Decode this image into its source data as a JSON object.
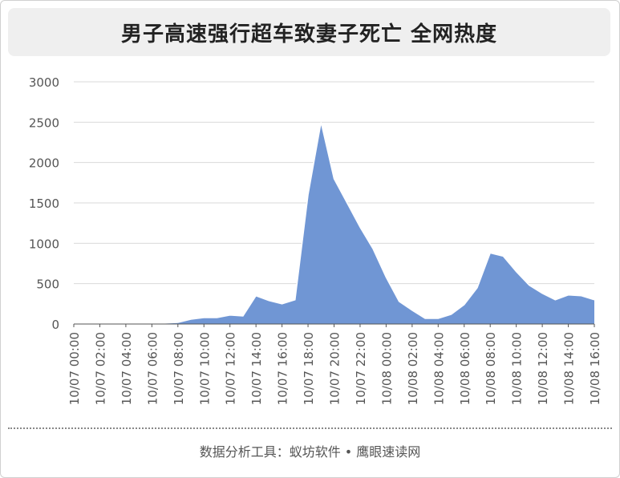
{
  "title": "男子高速强行超车致妻子死亡 全网热度",
  "footer": "数据分析工具：蚁坊软件 • 鹰眼速读网",
  "colors": {
    "area": "#7096d4",
    "area_line": "#ffffff",
    "grid": "#d9d9d9",
    "axis": "#555555",
    "tick_text": "#555555",
    "title_bg": "#efefef"
  },
  "chart_data": {
    "type": "area",
    "title": "男子高速强行超车致妻子死亡 全网热度",
    "xlabel": "",
    "ylabel": "",
    "ylim": [
      0,
      3000
    ],
    "yticks": [
      0,
      500,
      1000,
      1500,
      2000,
      2500,
      3000
    ],
    "grid": true,
    "legend": "none",
    "x": [
      "10/07 00:00",
      "10/07 01:00",
      "10/07 02:00",
      "10/07 03:00",
      "10/07 04:00",
      "10/07 05:00",
      "10/07 06:00",
      "10/07 07:00",
      "10/07 08:00",
      "10/07 09:00",
      "10/07 10:00",
      "10/07 11:00",
      "10/07 12:00",
      "10/07 13:00",
      "10/07 14:00",
      "10/07 15:00",
      "10/07 16:00",
      "10/07 17:00",
      "10/07 18:00",
      "10/07 19:00",
      "10/07 20:00",
      "10/07 21:00",
      "10/07 22:00",
      "10/07 23:00",
      "10/08 00:00",
      "10/08 01:00",
      "10/08 02:00",
      "10/08 03:00",
      "10/08 04:00",
      "10/08 05:00",
      "10/08 06:00",
      "10/08 07:00",
      "10/08 08:00",
      "10/08 09:00",
      "10/08 10:00",
      "10/08 11:00",
      "10/08 12:00",
      "10/08 13:00",
      "10/08 14:00",
      "10/08 15:00",
      "10/08 16:00"
    ],
    "x_tick_labels": [
      "10/07 00:00",
      "10/07 02:00",
      "10/07 04:00",
      "10/07 06:00",
      "10/07 08:00",
      "10/07 10:00",
      "10/07 12:00",
      "10/07 14:00",
      "10/07 16:00",
      "10/07 18:00",
      "10/07 20:00",
      "10/07 22:00",
      "10/08 00:00",
      "10/08 02:00",
      "10/08 04:00",
      "10/08 06:00",
      "10/08 08:00",
      "10/08 10:00",
      "10/08 12:00",
      "10/08 14:00",
      "10/08 16:00"
    ],
    "series": [
      {
        "values": [
          0,
          0,
          0,
          0,
          0,
          2,
          10,
          12,
          20,
          60,
          80,
          80,
          110,
          100,
          350,
          290,
          250,
          300,
          1600,
          2500,
          1800,
          1500,
          1200,
          930,
          580,
          280,
          170,
          70,
          70,
          120,
          240,
          450,
          880,
          840,
          650,
          480,
          380,
          300,
          360,
          350,
          300
        ]
      }
    ]
  }
}
